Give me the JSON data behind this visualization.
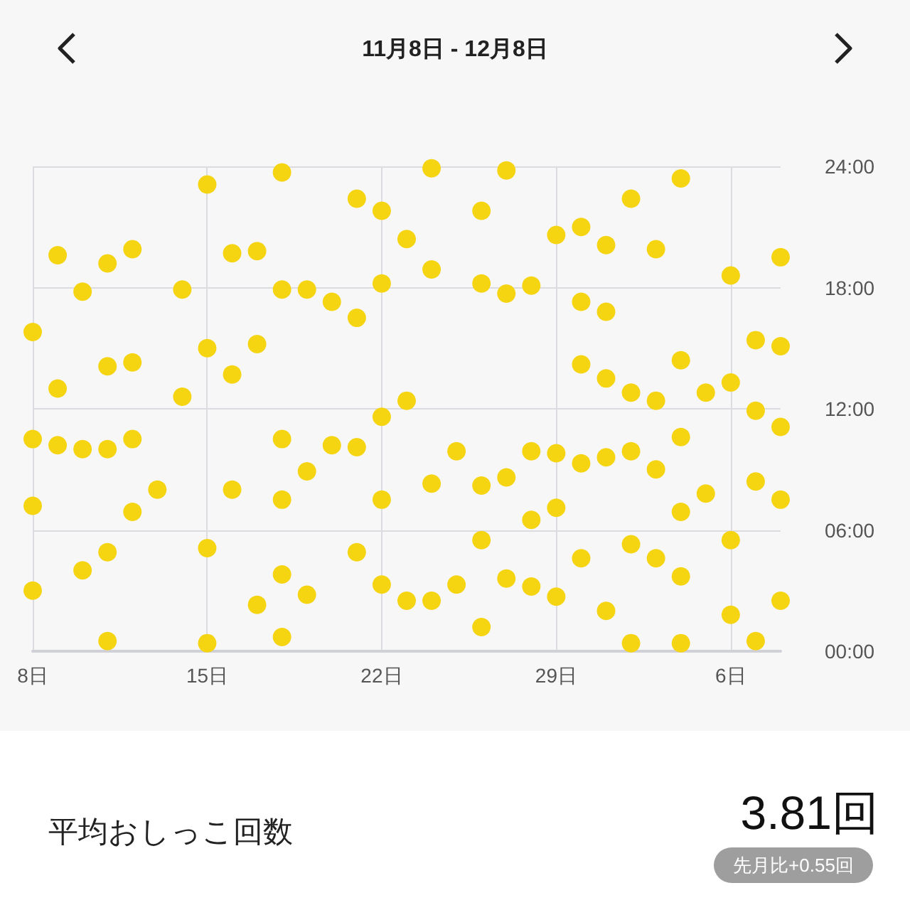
{
  "chart_data": {
    "type": "scatter",
    "title": "11月8日 - 12月8日",
    "x": [
      "--11-08",
      "--11-08",
      "--11-08",
      "--11-08",
      "--11-09",
      "--11-09",
      "--11-09",
      "--11-10",
      "--11-10",
      "--11-10",
      "--11-11",
      "--11-11",
      "--11-11",
      "--11-11",
      "--11-11",
      "--11-12",
      "--11-12",
      "--11-12",
      "--11-12",
      "--11-13",
      "--11-14",
      "--11-14",
      "--11-15",
      "--11-15",
      "--11-15",
      "--11-15",
      "--11-16",
      "--11-16",
      "--11-16",
      "--11-17",
      "--11-17",
      "--11-17",
      "--11-18",
      "--11-18",
      "--11-18",
      "--11-18",
      "--11-18",
      "--11-18",
      "--11-19",
      "--11-19",
      "--11-19",
      "--11-20",
      "--11-20",
      "--11-21",
      "--11-21",
      "--11-21",
      "--11-21",
      "--11-22",
      "--11-22",
      "--11-22",
      "--11-22",
      "--11-22",
      "--11-23",
      "--11-23",
      "--11-23",
      "--11-24",
      "--11-24",
      "--11-24",
      "--11-24",
      "--11-25",
      "--11-25",
      "--11-26",
      "--11-26",
      "--11-26",
      "--11-26",
      "--11-26",
      "--11-27",
      "--11-27",
      "--11-27",
      "--11-27",
      "--11-28",
      "--11-28",
      "--11-28",
      "--11-28",
      "--11-29",
      "--11-29",
      "--11-29",
      "--11-29",
      "--11-30",
      "--11-30",
      "--11-30",
      "--11-30",
      "--11-30",
      "--12-01",
      "--12-01",
      "--12-01",
      "--12-01",
      "--12-01",
      "--12-02",
      "--12-02",
      "--12-02",
      "--12-02",
      "--12-02",
      "--12-03",
      "--12-03",
      "--12-03",
      "--12-03",
      "--12-04",
      "--12-04",
      "--12-04",
      "--12-04",
      "--12-04",
      "--12-04",
      "--12-05",
      "--12-05",
      "--12-06",
      "--12-06",
      "--12-06",
      "--12-06",
      "--12-07",
      "--12-07",
      "--12-07",
      "--12-07",
      "--12-08",
      "--12-08",
      "--12-08",
      "--12-08",
      "--12-08"
    ],
    "values": [
      15.8,
      10.5,
      7.2,
      3.0,
      19.6,
      13.0,
      10.2,
      17.8,
      10.0,
      4.0,
      19.2,
      14.1,
      10.0,
      4.9,
      0.5,
      19.9,
      14.3,
      10.5,
      6.9,
      8.0,
      17.9,
      12.6,
      23.1,
      15.0,
      5.1,
      0.4,
      19.7,
      13.7,
      8.0,
      19.8,
      15.2,
      2.3,
      23.7,
      17.9,
      10.5,
      7.5,
      3.8,
      0.7,
      17.9,
      8.9,
      2.8,
      17.3,
      10.2,
      22.4,
      16.5,
      10.1,
      4.9,
      21.8,
      18.2,
      11.6,
      7.5,
      3.3,
      20.4,
      12.4,
      2.5,
      23.9,
      18.9,
      8.3,
      2.5,
      9.9,
      3.3,
      21.8,
      18.2,
      8.2,
      5.5,
      1.2,
      23.8,
      17.7,
      8.6,
      3.6,
      18.1,
      9.9,
      6.5,
      3.2,
      20.6,
      9.8,
      7.1,
      2.7,
      21.0,
      17.3,
      14.2,
      9.3,
      4.6,
      20.1,
      16.8,
      13.5,
      9.6,
      2.0,
      22.4,
      12.8,
      9.9,
      5.3,
      0.4,
      19.9,
      12.4,
      9.0,
      4.6,
      23.4,
      14.4,
      10.6,
      6.9,
      3.7,
      0.4,
      12.8,
      7.8,
      18.6,
      13.3,
      5.5,
      1.8,
      15.4,
      11.9,
      8.4,
      0.5,
      19.5,
      15.1,
      11.1,
      7.5,
      2.5
    ],
    "color": "#f5d411",
    "xlim": [
      "--11-08",
      "--12-08"
    ],
    "xticks": [
      {
        "value": "--11-08",
        "label": "8日"
      },
      {
        "value": "--11-15",
        "label": "15日"
      },
      {
        "value": "--11-22",
        "label": "22日"
      },
      {
        "value": "--11-29",
        "label": "29日"
      },
      {
        "value": "--12-06",
        "label": "6日"
      }
    ],
    "ylim": [
      0,
      24
    ],
    "yticks": [
      {
        "value": 0,
        "label": "00:00"
      },
      {
        "value": 6,
        "label": "06:00"
      },
      {
        "value": 12,
        "label": "12:00"
      },
      {
        "value": 18,
        "label": "18:00"
      },
      {
        "value": 24,
        "label": "24:00"
      }
    ],
    "grid": true,
    "marker": "circle",
    "annotations": [
      "平均おしっこ回数",
      "3.81回",
      "先月比+0.55回"
    ]
  }
}
